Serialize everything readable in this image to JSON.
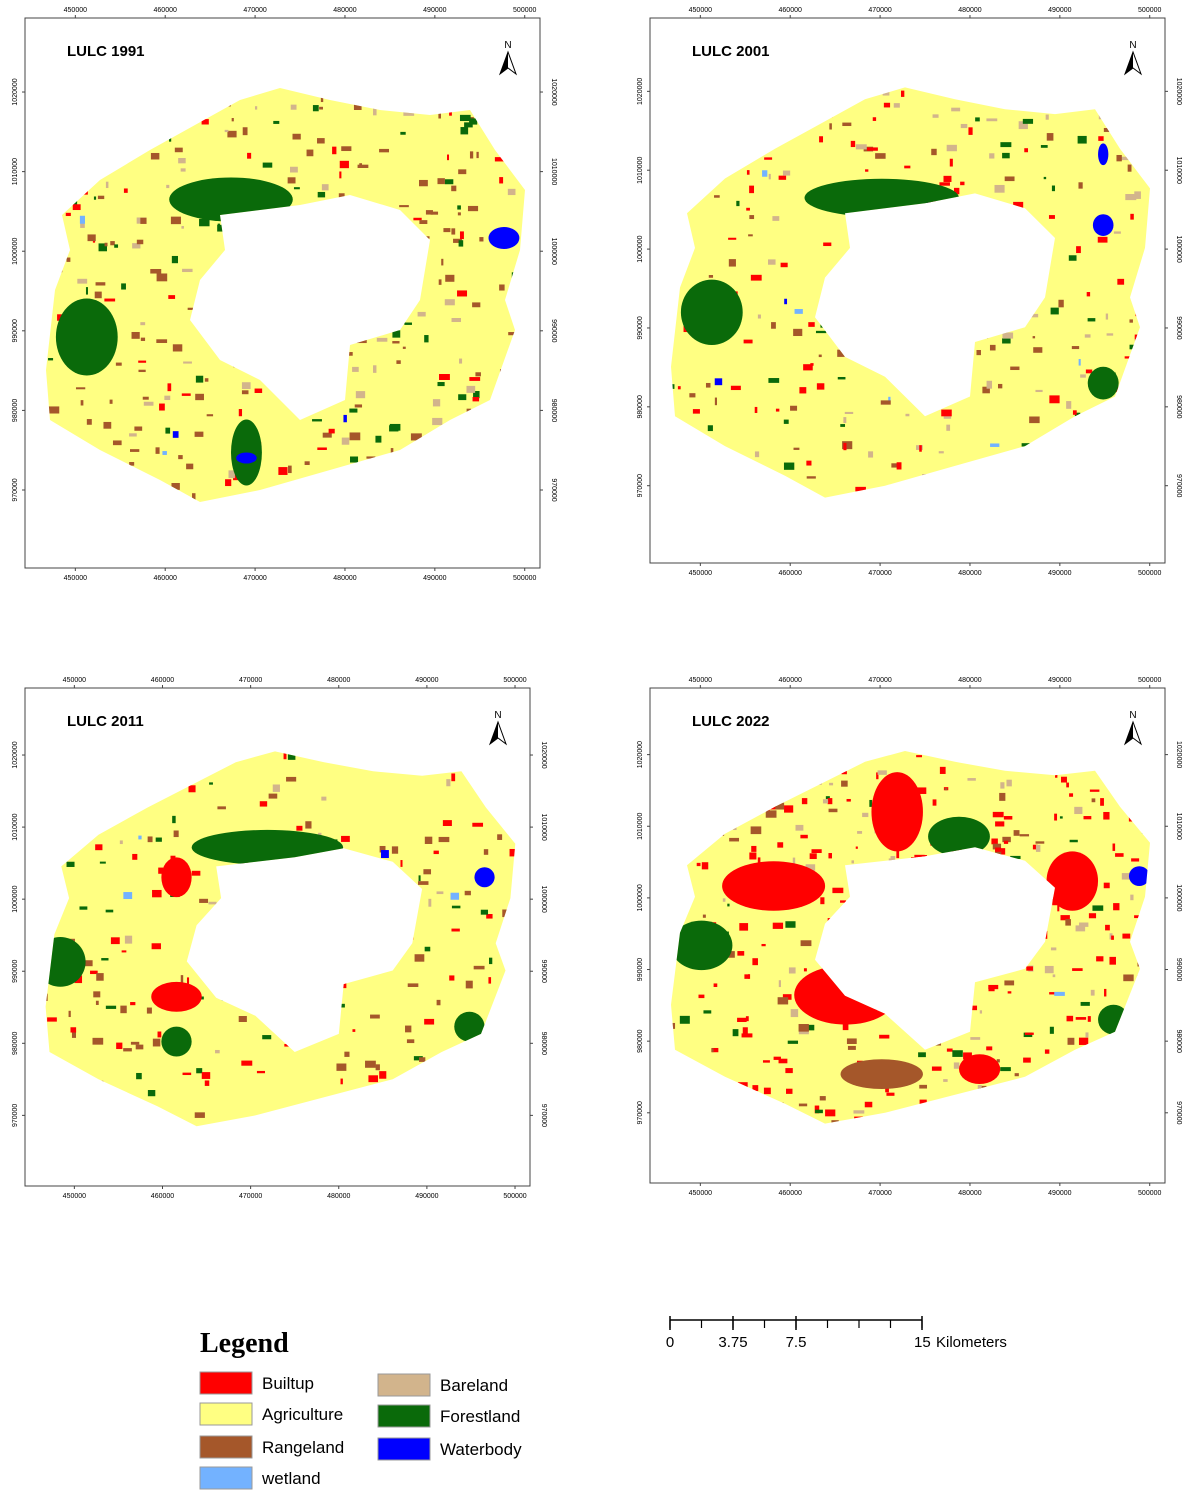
{
  "maps": [
    {
      "title": "LULC 1991"
    },
    {
      "title": "LULC 2001"
    },
    {
      "title": "LULC 2011"
    },
    {
      "title": "LULC 2022"
    }
  ],
  "north_label": "N",
  "axes": {
    "xlim": [
      444400,
      501700
    ],
    "ylim": [
      960200,
      1029300
    ],
    "xticks": [
      450000,
      460000,
      470000,
      480000,
      490000,
      500000
    ],
    "yticks": [
      970000,
      980000,
      990000,
      1000000,
      1010000,
      1020000
    ]
  },
  "legend": {
    "title": "Legend",
    "items": [
      {
        "name": "Builtup",
        "color": "#ff0000"
      },
      {
        "name": "Agriculture",
        "color": "#ffff82"
      },
      {
        "name": "Rangeland",
        "color": "#a5572a"
      },
      {
        "name": "wetland",
        "color": "#73b2ff"
      },
      {
        "name": "Bareland",
        "color": "#d2b48c"
      },
      {
        "name": "Forestland",
        "color": "#0a6a0a"
      },
      {
        "name": "Waterbody",
        "color": "#0000ff"
      }
    ]
  },
  "scale_bar": {
    "ticks": [
      0,
      3.75,
      7.5,
      15
    ],
    "unit": "Kilometers"
  }
}
